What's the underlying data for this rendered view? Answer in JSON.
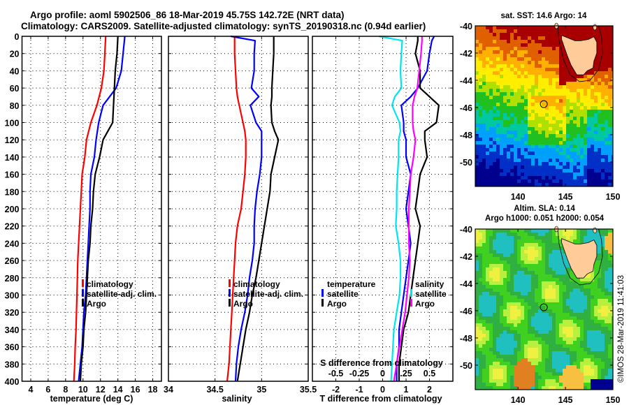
{
  "title_line1": "Argo profile: aoml 5902506_86 18-Mar-2019 45.75S 142.72E (NRT data)",
  "title_line2": "Climatology: CARS2009. Satellite-adjusted climatology: synTS_20190318.nc (0.94d earlier)",
  "colors": {
    "climatology": "#ff0000",
    "satellite": "#0000ff",
    "argo": "#000000",
    "sal_satellite": "#00e5ee",
    "sal_argo": "#ff00ff",
    "land": "#ffcc99"
  },
  "chart_data": [
    {
      "type": "line",
      "id": "temperature",
      "xlabel": "temperature (deg C)",
      "ylabel": "",
      "xlim": [
        3,
        19
      ],
      "ylim": [
        400,
        0
      ],
      "xticks": [
        4,
        6,
        8,
        10,
        12,
        14,
        16,
        18
      ],
      "yticks": [
        0,
        20,
        40,
        60,
        80,
        100,
        120,
        140,
        160,
        180,
        200,
        220,
        240,
        260,
        280,
        300,
        320,
        340,
        360,
        380,
        400
      ],
      "grid": true,
      "legend": [
        "climatology",
        "satellite-adj. clim.",
        "Argo"
      ],
      "legend_position": "lower-middle",
      "depth": [
        0,
        20,
        40,
        60,
        80,
        100,
        120,
        140,
        160,
        180,
        200,
        220,
        240,
        260,
        280,
        300,
        320,
        340,
        360,
        380,
        400
      ],
      "series": [
        {
          "name": "climatology",
          "color_key": "climatology",
          "values": [
            12.6,
            12.5,
            12.4,
            12.1,
            11.6,
            10.9,
            10.4,
            10.2,
            9.9,
            9.8,
            9.7,
            9.6,
            9.5,
            9.4,
            9.35,
            9.3,
            9.25,
            9.2,
            9.1,
            9.05,
            8.95
          ]
        },
        {
          "name": "satellite-adj. clim.",
          "color_key": "satellite",
          "values": [
            14.8,
            14.6,
            14.4,
            13.8,
            12.3,
            11.8,
            11.5,
            11.3,
            10.9,
            10.8,
            10.8,
            10.7,
            10.6,
            10.5,
            10.4,
            10.3,
            10.1,
            10.0,
            9.9,
            9.7,
            9.5
          ]
        },
        {
          "name": "Argo",
          "color_key": "argo",
          "values": [
            14.0,
            13.9,
            13.7,
            13.6,
            13.5,
            13.4,
            12.3,
            11.9,
            11.4,
            11.2,
            11.1,
            10.9,
            10.8,
            10.6,
            10.5,
            10.4,
            10.3,
            10.1,
            10.0,
            9.8,
            9.7
          ]
        }
      ]
    },
    {
      "type": "line",
      "id": "salinity",
      "xlabel": "salinity",
      "ylabel": "",
      "xlim": [
        34,
        35.5
      ],
      "ylim": [
        400,
        0
      ],
      "xticks": [
        34,
        34.5,
        35,
        35.5
      ],
      "yticks": [
        0,
        20,
        40,
        60,
        80,
        100,
        120,
        140,
        160,
        180,
        200,
        220,
        240,
        260,
        280,
        300,
        320,
        340,
        360,
        380,
        400
      ],
      "grid": true,
      "legend": [
        "climatology",
        "satellite-adj. clim.",
        "Argo"
      ],
      "legend_position": "lower-middle",
      "depth": [
        0,
        5,
        20,
        40,
        60,
        70,
        80,
        100,
        110,
        120,
        140,
        160,
        180,
        200,
        220,
        240,
        260,
        280,
        300,
        320,
        340,
        360,
        380,
        400
      ],
      "series": [
        {
          "name": "climatology",
          "color_key": "climatology",
          "values": [
            34.71,
            34.71,
            34.71,
            34.72,
            34.73,
            34.74,
            34.76,
            34.8,
            34.82,
            34.83,
            34.83,
            34.82,
            34.8,
            34.78,
            34.74,
            34.72,
            34.71,
            34.7,
            34.69,
            34.68,
            34.67,
            34.66,
            34.65,
            34.63
          ]
        },
        {
          "name": "satellite-adj. clim.",
          "color_key": "satellite",
          "values": [
            34.67,
            34.93,
            34.92,
            34.92,
            34.89,
            34.97,
            34.88,
            34.94,
            35.0,
            35.0,
            35.0,
            34.98,
            34.95,
            34.93,
            34.92,
            34.92,
            34.9,
            34.87,
            34.85,
            34.82,
            34.78,
            34.75,
            34.73,
            34.72
          ]
        },
        {
          "name": "Argo",
          "color_key": "argo",
          "values": [
            35.13,
            35.13,
            35.13,
            35.12,
            35.11,
            35.11,
            35.1,
            35.11,
            35.14,
            35.18,
            35.14,
            35.1,
            35.09,
            35.06,
            35.03,
            35.0,
            34.97,
            34.94,
            34.9,
            34.87,
            34.83,
            34.8,
            34.77,
            34.74
          ]
        }
      ]
    },
    {
      "type": "line",
      "id": "difference",
      "xlabel": "T difference from climatology",
      "xlabel_top": "S difference from climatology",
      "xlim": [
        -3,
        3
      ],
      "xlim_salinity": [
        -0.75,
        0.75
      ],
      "ylim": [
        400,
        0
      ],
      "xticks": [
        -2,
        -1,
        0,
        1,
        2
      ],
      "xticks_salinity": [
        -0.5,
        -0.25,
        0,
        0.25,
        0.5
      ],
      "xticklabels_salinity": [
        "-0.5",
        "-0.25",
        "0",
        ".25",
        "0.5"
      ],
      "grid": true,
      "legend_temperature": {
        "title": "temperature",
        "items": [
          "satellite",
          "Argo"
        ]
      },
      "legend_salinity": {
        "title": "salinity",
        "items": [
          "satellite",
          "Argo"
        ]
      },
      "legend_position": "lower",
      "depth": [
        0,
        5,
        20,
        40,
        60,
        70,
        80,
        100,
        110,
        120,
        140,
        160,
        180,
        200,
        220,
        240,
        260,
        280,
        300,
        320,
        340,
        360,
        380,
        400
      ],
      "series": [
        {
          "name": "T satellite",
          "axis": "T",
          "color_key": "satellite",
          "values": [
            2.2,
            2.1,
            2.0,
            1.9,
            1.5,
            1.2,
            0.8,
            0.9,
            0.9,
            1.0,
            1.0,
            1.2,
            1.1,
            1.0,
            1.1,
            1.2,
            1.1,
            1.0,
            0.9,
            0.8,
            0.7,
            0.7,
            0.6,
            0.6
          ]
        },
        {
          "name": "T Argo",
          "axis": "T",
          "color_key": "argo",
          "values": [
            1.5,
            1.5,
            1.4,
            1.6,
            1.6,
            2.0,
            2.4,
            2.3,
            1.8,
            1.8,
            1.9,
            1.6,
            1.5,
            1.4,
            1.6,
            1.5,
            1.4,
            1.3,
            1.2,
            1.1,
            0.9,
            0.8,
            0.7,
            0.7
          ]
        },
        {
          "name": "S satellite",
          "axis": "S",
          "color_key": "sal_satellite",
          "values": [
            -0.04,
            0.21,
            0.2,
            0.19,
            0.2,
            0.13,
            0.1,
            0.18,
            0.19,
            0.17,
            0.17,
            0.16,
            0.15,
            0.15,
            0.14,
            0.17,
            0.19,
            0.19,
            0.18,
            0.15,
            0.12,
            0.11,
            0.1,
            0.09
          ]
        },
        {
          "name": "S Argo",
          "axis": "S",
          "color_key": "sal_argo",
          "values": [
            0.42,
            0.42,
            0.41,
            0.39,
            0.37,
            0.34,
            0.32,
            0.32,
            0.33,
            0.35,
            0.33,
            0.3,
            0.29,
            0.28,
            0.28,
            0.28,
            0.29,
            0.28,
            0.26,
            0.24,
            0.21,
            0.18,
            0.15,
            0.12
          ]
        }
      ]
    },
    {
      "type": "heatmap",
      "id": "sst_map",
      "title": "sat. SST: 14.6 Argo: 14",
      "xlim": [
        135.5,
        150
      ],
      "ylim": [
        -51.8,
        -40
      ],
      "xticks": [
        140,
        145,
        150
      ],
      "yticks": [
        -40,
        -42,
        -44,
        -46,
        -48,
        -50
      ],
      "marker": {
        "lon": 142.72,
        "lat": -45.75
      },
      "sat_sst": 14.6,
      "argo_sst": 14
    },
    {
      "type": "heatmap",
      "id": "sla_map",
      "title": "Altim. SLA: 0.14",
      "subtitle": "Argo h1000: 0.051 h2000: 0.054",
      "xlim": [
        135.5,
        150
      ],
      "ylim": [
        -51.8,
        -40
      ],
      "xticks": [
        140,
        145,
        150
      ],
      "yticks": [
        -40,
        -42,
        -44,
        -46,
        -48,
        -50
      ],
      "marker": {
        "lon": 142.72,
        "lat": -45.75
      },
      "altim_sla": 0.14,
      "argo_h1000": 0.051,
      "argo_h2000": 0.054
    }
  ],
  "legends": {
    "profile": [
      "climatology",
      "satellite-adj. clim.",
      "Argo"
    ],
    "diff_temperature_title": "temperature",
    "diff_salinity_title": "salinity",
    "diff_items": [
      "satellite",
      "Argo"
    ]
  },
  "stamp": "©IMOS 28-Mar-2019 11:41:03"
}
